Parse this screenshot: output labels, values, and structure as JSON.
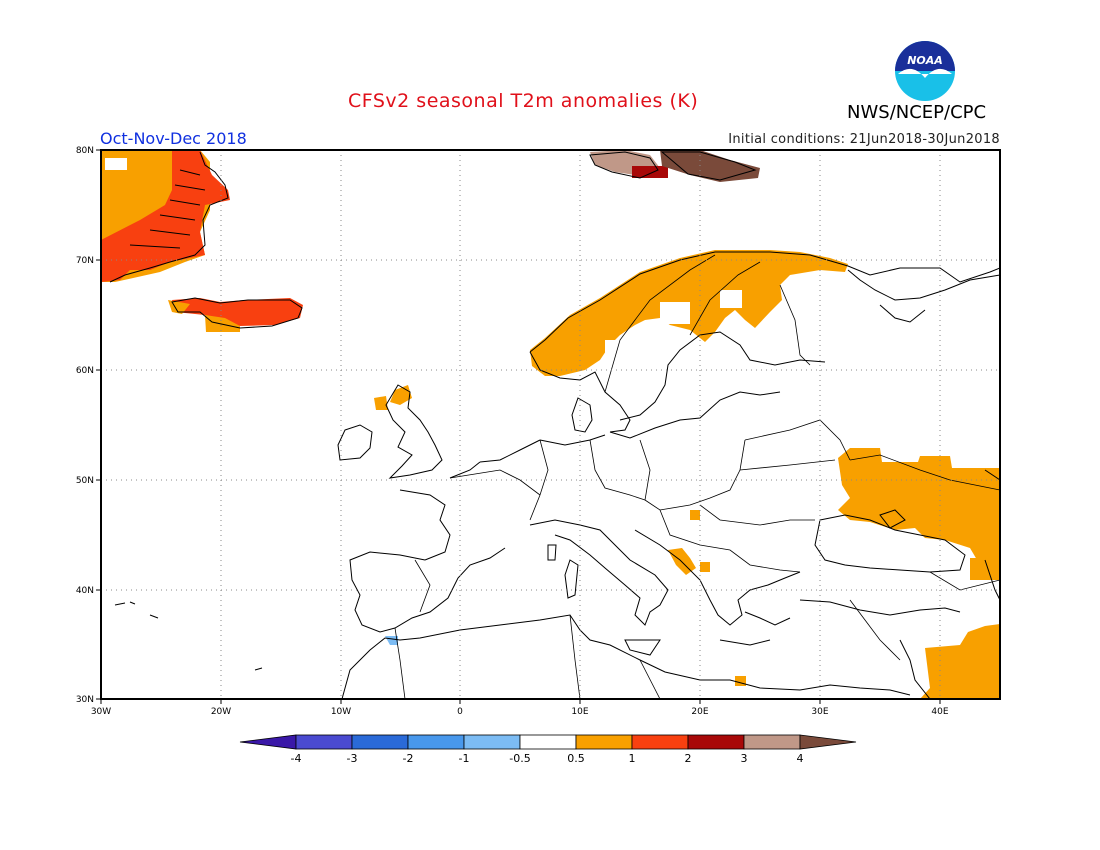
{
  "title": "CFSv2 seasonal T2m anomalies (K)",
  "period": "Oct-Nov-Dec 2018",
  "initial_conditions": "Initial conditions: 21Jun2018-30Jun2018",
  "agency": "NWS/NCEP/CPC",
  "logo_text": "NOAA",
  "map": {
    "lon_labels": [
      "30W",
      "20W",
      "10W",
      "0",
      "10E",
      "20E",
      "30E",
      "40E"
    ],
    "lat_labels": [
      "80N",
      "70N",
      "60N",
      "50N",
      "40N",
      "30N"
    ],
    "extent": {
      "lon": [
        -30,
        45
      ],
      "lat": [
        30,
        80
      ]
    }
  },
  "colorbar": {
    "labels": [
      "-4",
      "-3",
      "-2",
      "-1",
      "-0.5",
      "0.5",
      "1",
      "2",
      "3",
      "4"
    ],
    "colors": [
      "#3a18a8",
      "#4a4ad0",
      "#2a6ad8",
      "#4898ec",
      "#7cbcf4",
      "#ffffff",
      "#f8a000",
      "#f84010",
      "#a80808",
      "#c09888",
      "#7a4a3a"
    ]
  },
  "anomaly_colors": {
    "0.5 to 1": "#f8a000",
    "1 to 2": "#f84010",
    "2 to 3": "#a80808",
    "3 to 4": "#c09888",
    "above 4": "#7a4a3a",
    "-1 to -0.5": "#7cbcf4"
  }
}
